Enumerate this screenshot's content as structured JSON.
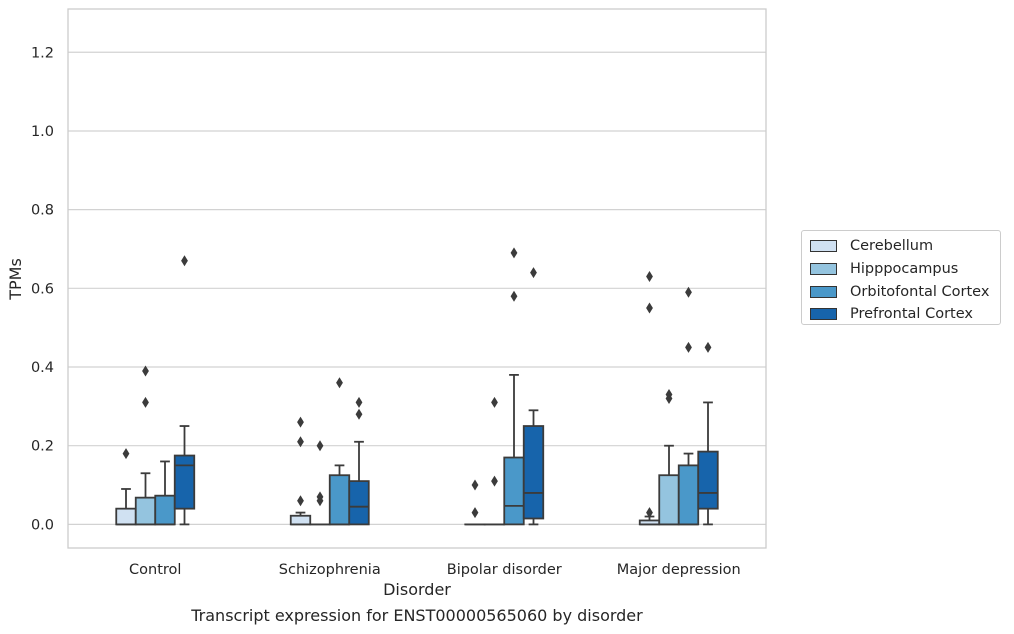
{
  "chart_data": {
    "type": "box",
    "xlabel": "Disorder",
    "ylabel": "TPMs",
    "caption": "Transcript expression for ENST00000565060 by disorder",
    "ylim": [
      -0.06,
      1.31
    ],
    "yticks": [
      "0.0",
      "0.2",
      "0.4",
      "0.6",
      "0.8",
      "1.0",
      "1.2"
    ],
    "grid": true,
    "legend_position": "right",
    "categories": [
      "Control",
      "Schizophrenia",
      "Bipolar disorder",
      "Major depression"
    ],
    "series": [
      {
        "name": "Cerebellum",
        "color": "#d0e1f2",
        "boxes": [
          {
            "min": 0.0,
            "q1": 0.0,
            "median": 0.0,
            "q3": 0.04,
            "max": 0.09,
            "outliers": [
              0.18
            ]
          },
          {
            "min": 0.0,
            "q1": 0.0,
            "median": 0.0,
            "q3": 0.022,
            "max": 0.03,
            "outliers": [
              0.06,
              0.21,
              0.26
            ]
          },
          {
            "min": 0.0,
            "q1": 0.0,
            "median": 0.0,
            "q3": 0.0,
            "max": 0.0,
            "outliers": [
              0.03,
              0.1
            ]
          },
          {
            "min": 0.0,
            "q1": 0.0,
            "median": 0.0,
            "q3": 0.01,
            "max": 0.02,
            "outliers": [
              0.03,
              0.55,
              0.63
            ]
          }
        ]
      },
      {
        "name": "Hipppocampus",
        "color": "#94c4df",
        "boxes": [
          {
            "min": 0.0,
            "q1": 0.0,
            "median": 0.0,
            "q3": 0.068,
            "max": 0.13,
            "outliers": [
              0.31,
              0.39
            ]
          },
          {
            "min": 0.0,
            "q1": 0.0,
            "median": 0.0,
            "q3": 0.0,
            "max": 0.0,
            "outliers": [
              0.06,
              0.07,
              0.2
            ]
          },
          {
            "min": 0.0,
            "q1": 0.0,
            "median": 0.0,
            "q3": 0.0,
            "max": 0.0,
            "outliers": [
              0.11,
              0.31
            ]
          },
          {
            "min": 0.0,
            "q1": 0.0,
            "median": 0.0,
            "q3": 0.125,
            "max": 0.2,
            "outliers": [
              0.32,
              0.33
            ]
          }
        ]
      },
      {
        "name": "Orbitofontal Cortex",
        "color": "#4a98c9",
        "boxes": [
          {
            "min": 0.0,
            "q1": 0.0,
            "median": 0.0,
            "q3": 0.073,
            "max": 0.16,
            "outliers": []
          },
          {
            "min": 0.0,
            "q1": 0.0,
            "median": 0.0,
            "q3": 0.125,
            "max": 0.15,
            "outliers": [
              0.36
            ]
          },
          {
            "min": 0.0,
            "q1": 0.0,
            "median": 0.047,
            "q3": 0.17,
            "max": 0.38,
            "outliers": [
              0.58,
              0.69
            ]
          },
          {
            "min": 0.0,
            "q1": 0.0,
            "median": 0.0,
            "q3": 0.15,
            "max": 0.18,
            "outliers": [
              0.45,
              0.59
            ]
          }
        ]
      },
      {
        "name": "Prefrontal Cortex",
        "color": "#1764ab",
        "boxes": [
          {
            "min": 0.0,
            "q1": 0.04,
            "median": 0.15,
            "q3": 0.175,
            "max": 0.25,
            "outliers": [
              0.67
            ]
          },
          {
            "min": 0.0,
            "q1": 0.0,
            "median": 0.045,
            "q3": 0.11,
            "max": 0.21,
            "outliers": [
              0.28,
              0.31
            ]
          },
          {
            "min": 0.0,
            "q1": 0.015,
            "median": 0.08,
            "q3": 0.25,
            "max": 0.29,
            "outliers": [
              0.64
            ]
          },
          {
            "min": 0.0,
            "q1": 0.04,
            "median": 0.08,
            "q3": 0.185,
            "max": 0.31,
            "outliers": [
              0.45
            ]
          }
        ]
      }
    ]
  }
}
